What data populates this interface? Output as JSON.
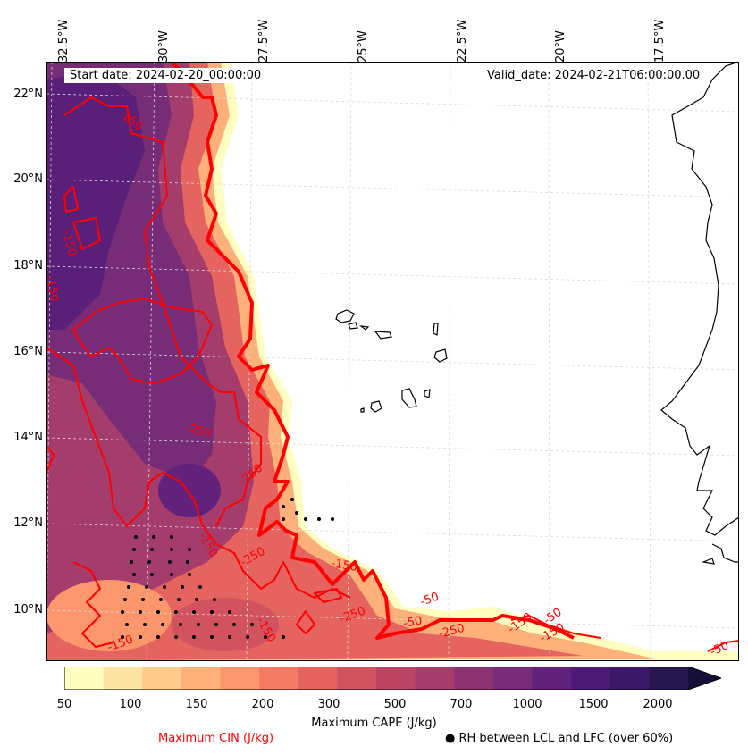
{
  "map": {
    "start_date": "Start date: 2024-02-20_00:00:00",
    "valid_date": "Valid_date: 2024-02-21T06:00:00.00",
    "longitude_labels": [
      "32.5°W",
      "30°W",
      "27.5°W",
      "25°W",
      "22.5°W",
      "20°W",
      "17.5°W"
    ],
    "latitude_labels": [
      "22°N",
      "20°N",
      "18°N",
      "16°N",
      "14°N",
      "12°N",
      "10°N"
    ],
    "cin_contour_labels": [
      "-150",
      "-250",
      "-150",
      "-150",
      "-250",
      "-150",
      "-250",
      "-150",
      "-50",
      "-250",
      "-150",
      "-50",
      "-250",
      "-150",
      "-150",
      "-50",
      "-150",
      "-50"
    ],
    "colors": {
      "cin_contour": "#ff0000",
      "coastline": "#000000",
      "gridline": "#d8d8d8",
      "dots": "#000000"
    }
  },
  "colorbar": {
    "ticks": [
      "50",
      "100",
      "150",
      "200",
      "300",
      "500",
      "700",
      "1000",
      "1500",
      "2000"
    ],
    "colors": [
      "#fffdbf",
      "#fee4a3",
      "#fecb8d",
      "#fdb07a",
      "#fc966d",
      "#f57a63",
      "#e6645f",
      "#d3525f",
      "#bc4563",
      "#a43c6c",
      "#8d3372",
      "#772c78",
      "#62227b",
      "#4e1a77",
      "#3b1768",
      "#281651",
      "#160f3a"
    ],
    "label": "Maximum CAPE (J/kg)",
    "extend": "max"
  },
  "legend": {
    "cin_label": "Maximum CIN (J/kg)",
    "rh_label": "RH between LCL and LFC (over 60%)",
    "rh_marker": "●"
  }
}
